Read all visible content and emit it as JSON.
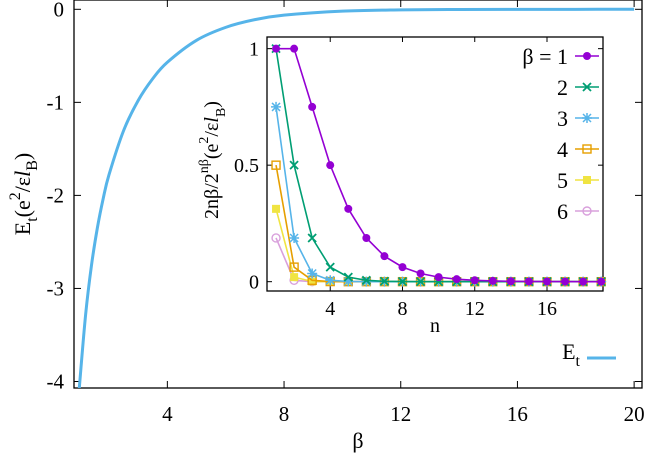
{
  "chart_data": [
    {
      "type": "line",
      "title": "",
      "xlabel": "β",
      "ylabel_parts": [
        "E",
        "t",
        "(e",
        "2",
        "/ε",
        "l",
        "B",
        ")"
      ],
      "xlim": [
        0.8,
        20.27
      ],
      "ylim": [
        -4.07,
        0.1
      ],
      "xticks": [
        4,
        8,
        12,
        16,
        20
      ],
      "xtick_labels": [
        "4",
        "8",
        "12",
        "16",
        "20"
      ],
      "yticks": [
        0,
        -1,
        -2,
        -3,
        -4
      ],
      "ytick_labels": [
        "0",
        "-1",
        "-2",
        "-3",
        "-4"
      ],
      "grid": false,
      "legend_placement": "bottom-right",
      "series": [
        {
          "name": "E",
          "name_sub": "t",
          "color": "#56b4e9",
          "x": [
            0.97,
            1,
            1.2,
            1.4,
            1.6,
            1.8,
            2,
            2.5,
            3,
            3.5,
            4,
            5,
            6,
            7,
            8,
            10,
            12,
            14,
            16,
            18,
            20
          ],
          "y": [
            -4.13,
            -4.0,
            -3.276,
            -2.75,
            -2.351,
            -2.035,
            -1.778,
            -1.304,
            -0.98,
            -0.745,
            -0.569,
            -0.333,
            -0.194,
            -0.111,
            -0.063,
            -0.0196,
            -0.0059,
            -0.0017,
            -0.0005,
            -0.0001,
            0
          ]
        }
      ]
    },
    {
      "type": "line",
      "title": "",
      "xlabel": "n",
      "ylabel_parts": [
        "2nβ/2",
        "nβ",
        "(e",
        "2",
        "/ε",
        "l",
        "B",
        ")"
      ],
      "xlim": [
        0.5,
        19.1
      ],
      "ylim": [
        -0.04,
        1.05
      ],
      "xticks": [
        4,
        8,
        12,
        16
      ],
      "xtick_labels": [
        "4",
        "8",
        "12",
        "16"
      ],
      "yticks": [
        0,
        0.5,
        1
      ],
      "ytick_labels": [
        "0",
        "0.5",
        "1"
      ],
      "grid": false,
      "legend_placement": "top-right",
      "x": [
        1,
        2,
        3,
        4,
        5,
        6,
        7,
        8,
        9,
        10,
        11,
        12,
        13,
        14,
        15,
        16,
        17,
        18,
        19
      ],
      "series": [
        {
          "name": "β = 1",
          "color": "#9400d3",
          "marker": "filled-circle",
          "values": [
            1,
            1,
            0.75,
            0.5,
            0.3125,
            0.1875,
            0.1094,
            0.0625,
            0.0352,
            0.0195,
            0.0107,
            0.0059,
            0.0032,
            0.0017,
            0.0009,
            0.0005,
            0.0003,
            0.0001,
            0.0001
          ]
        },
        {
          "name": "2",
          "color": "#009e73",
          "marker": "cross",
          "values": [
            1,
            0.5,
            0.1875,
            0.0625,
            0.0195,
            0.0059,
            0.0017,
            0.0005,
            0.0001,
            0,
            0,
            0,
            0,
            0,
            0,
            0,
            0,
            0,
            0
          ]
        },
        {
          "name": "3",
          "color": "#56b4e9",
          "marker": "star",
          "values": [
            0.75,
            0.1875,
            0.0352,
            0.0059,
            0.0009,
            0.0001,
            0,
            0,
            0,
            0,
            0,
            0,
            0,
            0,
            0,
            0,
            0,
            0,
            0
          ]
        },
        {
          "name": "4",
          "color": "#e69f00",
          "marker": "open-square",
          "values": [
            0.5,
            0.0625,
            0.0059,
            0.0005,
            0,
            0,
            0,
            0,
            0,
            0,
            0,
            0,
            0,
            0,
            0,
            0,
            0,
            0,
            0
          ]
        },
        {
          "name": "5",
          "color": "#f0e442",
          "marker": "filled-square",
          "values": [
            0.3125,
            0.0195,
            0.0009,
            0,
            0,
            0,
            0,
            0,
            0,
            0,
            0,
            0,
            0,
            0,
            0,
            0,
            0,
            0,
            0
          ]
        },
        {
          "name": "6",
          "color": "#d9a0dc",
          "marker": "open-circle",
          "values": [
            0.1875,
            0.0059,
            0.0001,
            0,
            0,
            0,
            0,
            0,
            0,
            0,
            0,
            0,
            0,
            0,
            0,
            0,
            0,
            0,
            0
          ]
        }
      ]
    }
  ]
}
